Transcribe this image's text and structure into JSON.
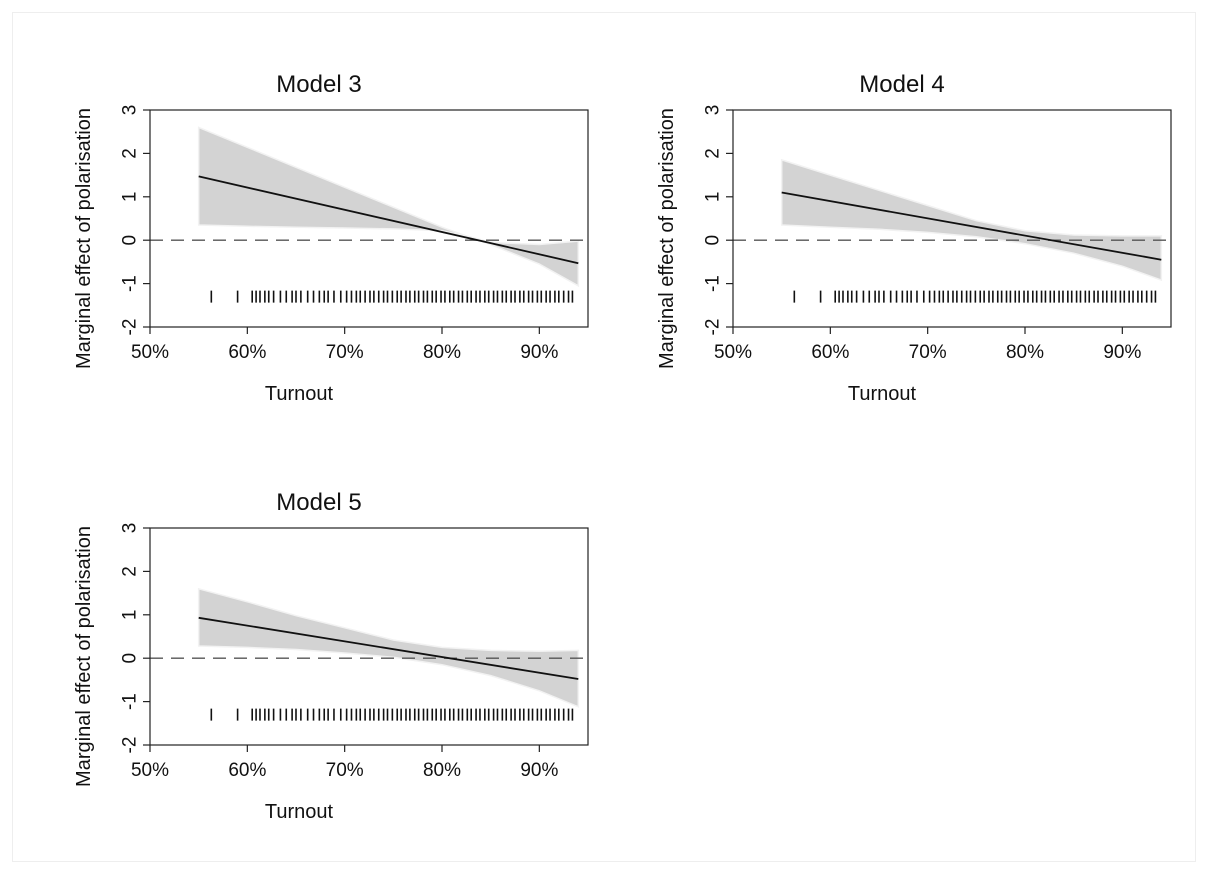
{
  "chart_data": [
    {
      "type": "line",
      "title": "Model 3",
      "xlabel": "Turnout",
      "ylabel": "Marginal effect of polarisation",
      "xlim": [
        50,
        95
      ],
      "ylim": [
        -2,
        3
      ],
      "x_ticks": [
        50,
        60,
        70,
        80,
        90
      ],
      "x_tick_labels": [
        "50%",
        "60%",
        "70%",
        "80%",
        "90%"
      ],
      "y_ticks": [
        -2,
        -1,
        0,
        1,
        2,
        3
      ],
      "y_tick_labels": [
        "-2",
        "-1",
        "0",
        "1",
        "2",
        "3"
      ],
      "reference_line_y": 0,
      "grid": false,
      "series": [
        {
          "x": [
            55,
            94
          ],
          "y": [
            1.47,
            -0.53
          ]
        }
      ],
      "band": {
        "x": [
          55,
          60,
          65,
          70,
          75,
          80,
          82.5,
          85,
          90,
          94
        ],
        "upper": [
          2.6,
          2.14,
          1.68,
          1.22,
          0.76,
          0.3,
          0.1,
          -0.05,
          -0.1,
          -0.02
        ],
        "lower": [
          0.35,
          0.32,
          0.3,
          0.28,
          0.26,
          0.22,
          0.1,
          -0.1,
          -0.55,
          -1.05
        ]
      },
      "rug_x": [
        56.3,
        59.0,
        60.5,
        60.9,
        61.3,
        61.8,
        62.2,
        62.7,
        63.4,
        64.0,
        64.6,
        65.0,
        65.5,
        66.2,
        66.8,
        67.4,
        67.9,
        68.3,
        68.9,
        69.6,
        70.2,
        70.7,
        71.2,
        71.6,
        72.1,
        72.6,
        73.0,
        73.5,
        74.0,
        74.4,
        74.9,
        75.4,
        75.8,
        76.3,
        76.7,
        77.2,
        77.6,
        78.1,
        78.5,
        79.0,
        79.4,
        79.9,
        80.3,
        80.8,
        81.2,
        81.7,
        82.1,
        82.6,
        83.0,
        83.5,
        83.9,
        84.4,
        84.8,
        85.3,
        85.7,
        86.2,
        86.6,
        87.1,
        87.5,
        88.0,
        88.4,
        88.9,
        89.3,
        89.8,
        90.2,
        90.7,
        91.1,
        91.6,
        92.0,
        92.5,
        93.0,
        93.4
      ]
    },
    {
      "type": "line",
      "title": "Model 4",
      "xlabel": "Turnout",
      "ylabel": "Marginal effect of polarisation",
      "xlim": [
        50,
        95
      ],
      "ylim": [
        -2,
        3
      ],
      "x_ticks": [
        50,
        60,
        70,
        80,
        90
      ],
      "x_tick_labels": [
        "50%",
        "60%",
        "70%",
        "80%",
        "90%"
      ],
      "y_ticks": [
        -2,
        -1,
        0,
        1,
        2,
        3
      ],
      "y_tick_labels": [
        "-2",
        "-1",
        "0",
        "1",
        "2",
        "3"
      ],
      "reference_line_y": 0,
      "grid": false,
      "series": [
        {
          "x": [
            55,
            94
          ],
          "y": [
            1.1,
            -0.45
          ]
        }
      ],
      "band": {
        "x": [
          55,
          60,
          65,
          70,
          75,
          80,
          85,
          90,
          94
        ],
        "upper": [
          1.85,
          1.5,
          1.15,
          0.8,
          0.45,
          0.22,
          0.12,
          0.1,
          0.1
        ],
        "lower": [
          0.35,
          0.3,
          0.25,
          0.18,
          0.08,
          -0.08,
          -0.3,
          -0.6,
          -0.92
        ]
      },
      "rug_x": [
        56.3,
        59.0,
        60.5,
        60.9,
        61.3,
        61.8,
        62.2,
        62.7,
        63.4,
        64.0,
        64.6,
        65.0,
        65.5,
        66.2,
        66.8,
        67.4,
        67.9,
        68.3,
        68.9,
        69.6,
        70.2,
        70.7,
        71.2,
        71.6,
        72.1,
        72.6,
        73.0,
        73.5,
        74.0,
        74.4,
        74.9,
        75.4,
        75.8,
        76.3,
        76.7,
        77.2,
        77.6,
        78.1,
        78.5,
        79.0,
        79.4,
        79.9,
        80.3,
        80.8,
        81.2,
        81.7,
        82.1,
        82.6,
        83.0,
        83.5,
        83.9,
        84.4,
        84.8,
        85.3,
        85.7,
        86.2,
        86.6,
        87.1,
        87.5,
        88.0,
        88.4,
        88.9,
        89.3,
        89.8,
        90.2,
        90.7,
        91.1,
        91.6,
        92.0,
        92.5,
        93.0,
        93.4
      ]
    },
    {
      "type": "line",
      "title": "Model 5",
      "xlabel": "Turnout",
      "ylabel": "Marginal effect of polarisation",
      "xlim": [
        50,
        95
      ],
      "ylim": [
        -2,
        3
      ],
      "x_ticks": [
        50,
        60,
        70,
        80,
        90
      ],
      "x_tick_labels": [
        "50%",
        "60%",
        "70%",
        "80%",
        "90%"
      ],
      "y_ticks": [
        -2,
        -1,
        0,
        1,
        2,
        3
      ],
      "y_tick_labels": [
        "-2",
        "-1",
        "0",
        "1",
        "2",
        "3"
      ],
      "reference_line_y": 0,
      "grid": false,
      "series": [
        {
          "x": [
            55,
            94
          ],
          "y": [
            0.93,
            -0.48
          ]
        }
      ],
      "band": {
        "x": [
          55,
          60,
          65,
          70,
          75,
          80,
          85,
          90,
          94
        ],
        "upper": [
          1.6,
          1.3,
          0.98,
          0.7,
          0.42,
          0.25,
          0.18,
          0.16,
          0.18
        ],
        "lower": [
          0.28,
          0.25,
          0.2,
          0.12,
          0.02,
          -0.15,
          -0.4,
          -0.75,
          -1.12
        ]
      },
      "rug_x": [
        56.3,
        59.0,
        60.5,
        60.9,
        61.3,
        61.8,
        62.2,
        62.7,
        63.4,
        64.0,
        64.6,
        65.0,
        65.5,
        66.2,
        66.8,
        67.4,
        67.9,
        68.3,
        68.9,
        69.6,
        70.2,
        70.7,
        71.2,
        71.6,
        72.1,
        72.6,
        73.0,
        73.5,
        74.0,
        74.4,
        74.9,
        75.4,
        75.8,
        76.3,
        76.7,
        77.2,
        77.6,
        78.1,
        78.5,
        79.0,
        79.4,
        79.9,
        80.3,
        80.8,
        81.2,
        81.7,
        82.1,
        82.6,
        83.0,
        83.5,
        83.9,
        84.4,
        84.8,
        85.3,
        85.7,
        86.2,
        86.6,
        87.1,
        87.5,
        88.0,
        88.4,
        88.9,
        89.3,
        89.8,
        90.2,
        90.7,
        91.1,
        91.6,
        92.0,
        92.5,
        93.0,
        93.4
      ]
    }
  ],
  "colors": {
    "band_fill": "#d3d3d3",
    "band_edge": "#f2f2f2",
    "line": "#111111",
    "axis": "#222222",
    "reference_line": "#555555",
    "rug": "#111111"
  }
}
